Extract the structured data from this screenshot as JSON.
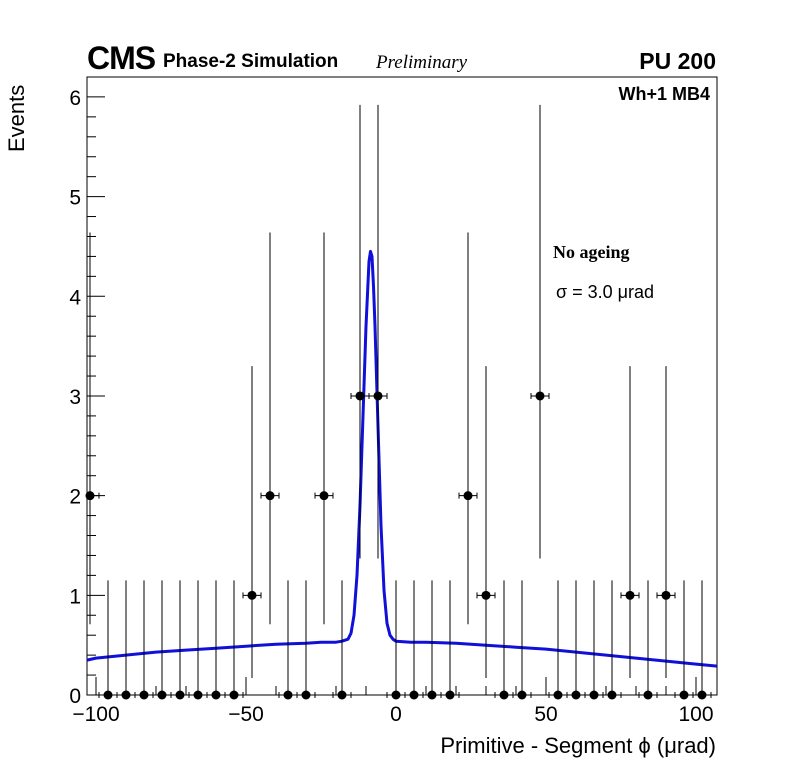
{
  "header": {
    "experiment": "CMS",
    "subtitle": "Phase-2 Simulation",
    "status": "Preliminary",
    "pileup": "PU 200",
    "station": "Wh+1 MB4"
  },
  "annotations": {
    "condition": "No ageing",
    "sigma": "σ = 3.0  μrad"
  },
  "chart_data": {
    "type": "scatter",
    "xlabel": "Primitive - Segment ϕ (μrad)",
    "ylabel": "Events",
    "xlim": [
      -103,
      107
    ],
    "ylim": [
      0,
      6.2
    ],
    "x_ticks": [
      -100,
      -50,
      0,
      50,
      100
    ],
    "x_tick_labels": [
      "−100",
      "−50",
      "0",
      "50",
      "100"
    ],
    "y_ticks": [
      0,
      1,
      2,
      3,
      4,
      5,
      6
    ],
    "y_tick_labels": [
      "0",
      "1",
      "2",
      "3",
      "4",
      "5",
      "6"
    ],
    "grid": false,
    "series": [
      {
        "marker": "circle",
        "color": "#000000",
        "bin_width": 6,
        "x": [
          -102,
          -96,
          -90,
          -84,
          -78,
          -72,
          -66,
          -60,
          -54,
          -48,
          -42,
          -36,
          -30,
          -24,
          -18,
          -12,
          -6,
          0,
          6,
          12,
          18,
          24,
          30,
          36,
          42,
          48,
          54,
          60,
          66,
          72,
          78,
          84,
          90,
          96,
          102
        ],
        "y": [
          2,
          0,
          0,
          0,
          0,
          0,
          0,
          0,
          0,
          1,
          2,
          0,
          0,
          2,
          0,
          3,
          3,
          0,
          0,
          0,
          0,
          2,
          1,
          0,
          0,
          3,
          0,
          0,
          0,
          0,
          1,
          0,
          1,
          0,
          0
        ],
        "y_err_low": [
          1.29,
          0,
          0,
          0,
          0,
          0,
          0,
          0,
          0,
          0.83,
          1.29,
          0,
          0,
          1.29,
          0,
          1.63,
          1.63,
          0,
          0,
          0,
          0,
          1.29,
          0.83,
          0,
          0,
          1.63,
          0,
          0,
          0,
          0,
          0.83,
          0,
          0.83,
          0,
          0
        ],
        "y_err_high": [
          2.64,
          1.15,
          1.15,
          1.15,
          1.15,
          1.15,
          1.15,
          1.15,
          1.15,
          2.3,
          2.64,
          1.15,
          1.15,
          2.64,
          1.15,
          2.92,
          2.92,
          1.15,
          1.15,
          1.15,
          1.15,
          2.64,
          2.3,
          1.15,
          1.15,
          2.92,
          1.15,
          1.15,
          1.15,
          1.15,
          2.3,
          1.15,
          2.3,
          1.15,
          1.15
        ]
      },
      {
        "type": "line",
        "color": "#1010d8",
        "x": [
          -105,
          -100,
          -90,
          -80,
          -70,
          -60,
          -50,
          -40,
          -30,
          -25,
          -20,
          -18,
          -16,
          -15,
          -14,
          -13,
          -12,
          -11,
          -10,
          -9,
          -8.5,
          -8,
          -7.5,
          -7,
          -6,
          -5,
          -4,
          -3,
          -2,
          -1,
          0,
          5,
          10,
          20,
          30,
          40,
          50,
          60,
          70,
          80,
          90,
          100,
          107
        ],
        "y": [
          0.35,
          0.37,
          0.4,
          0.43,
          0.45,
          0.47,
          0.49,
          0.51,
          0.52,
          0.53,
          0.53,
          0.54,
          0.56,
          0.62,
          0.8,
          1.2,
          1.9,
          2.8,
          3.7,
          4.35,
          4.45,
          4.4,
          4.1,
          3.7,
          2.7,
          1.7,
          1.05,
          0.72,
          0.6,
          0.56,
          0.54,
          0.53,
          0.53,
          0.52,
          0.5,
          0.48,
          0.46,
          0.43,
          0.4,
          0.37,
          0.34,
          0.31,
          0.29
        ]
      }
    ]
  }
}
